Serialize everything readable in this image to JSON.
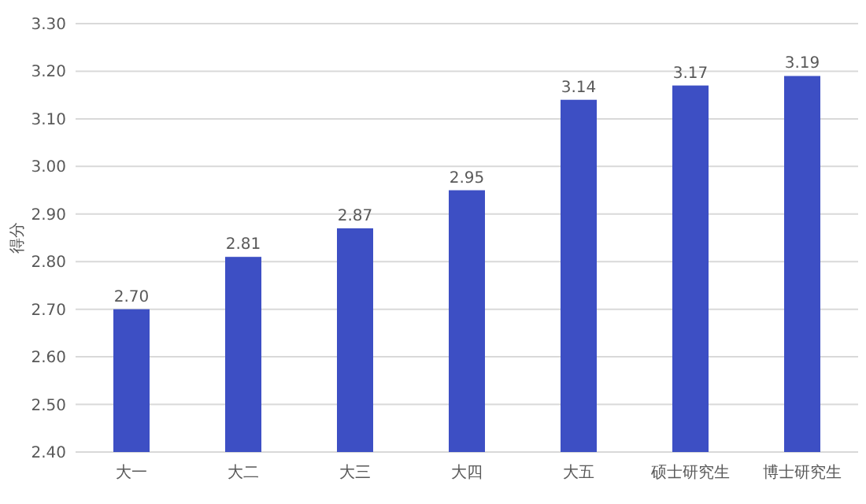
{
  "chart_data": {
    "type": "bar",
    "ylabel": "得分",
    "categories": [
      "大一",
      "大二",
      "大三",
      "大四",
      "大五",
      "硕士研究生",
      "博士研究生"
    ],
    "values": [
      2.7,
      2.81,
      2.87,
      2.95,
      3.14,
      3.17,
      3.19
    ],
    "value_labels": [
      "2.70",
      "2.81",
      "2.87",
      "2.95",
      "3.14",
      "3.17",
      "3.19"
    ],
    "color": "#3d4fc4",
    "ylim": [
      2.4,
      3.3
    ],
    "yticks": [
      {
        "value": 2.4,
        "label": "2.40"
      },
      {
        "value": 2.5,
        "label": "2.50"
      },
      {
        "value": 2.6,
        "label": "2.60"
      },
      {
        "value": 2.7,
        "label": "2.70"
      },
      {
        "value": 2.8,
        "label": "2.80"
      },
      {
        "value": 2.9,
        "label": "2.90"
      },
      {
        "value": 3.0,
        "label": "3.00"
      },
      {
        "value": 3.1,
        "label": "3.10"
      },
      {
        "value": 3.2,
        "label": "3.20"
      },
      {
        "value": 3.3,
        "label": "3.30"
      }
    ],
    "grid": "y"
  }
}
